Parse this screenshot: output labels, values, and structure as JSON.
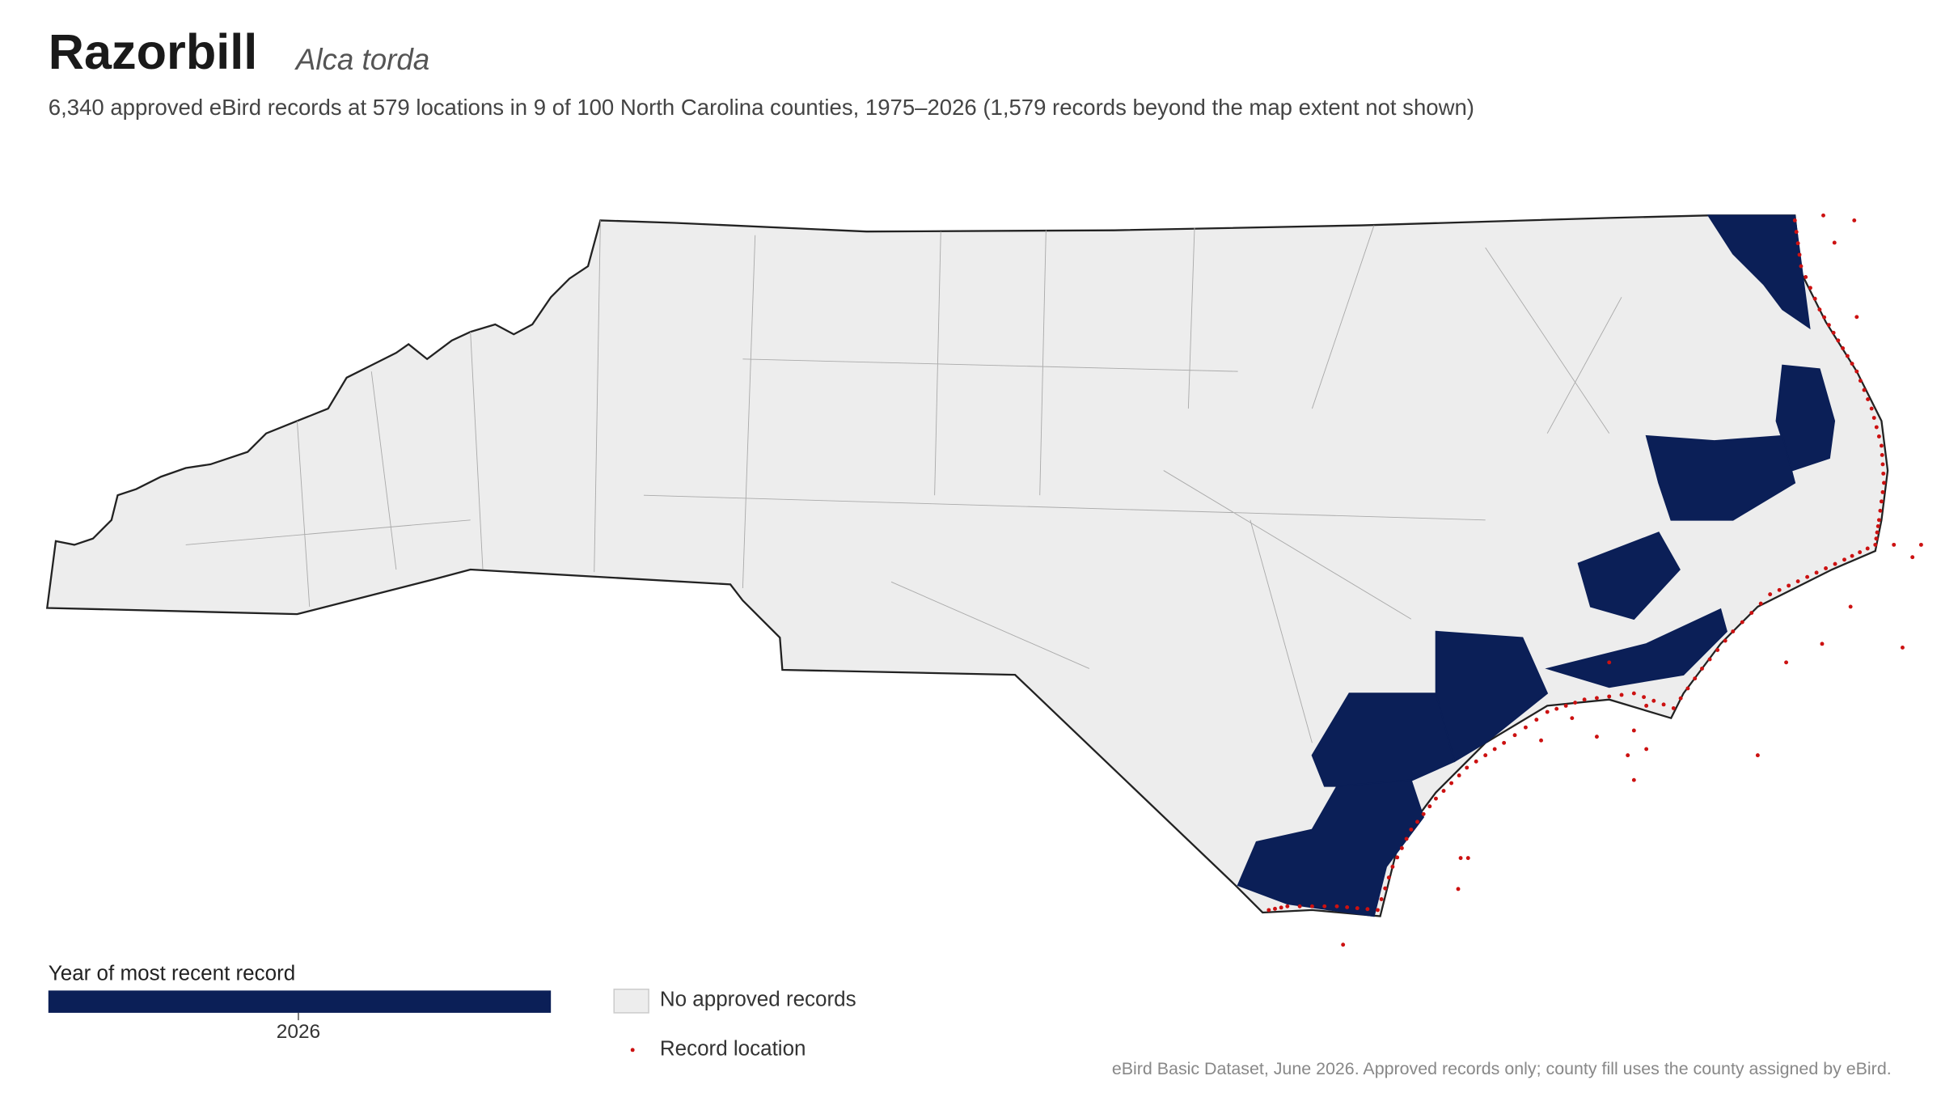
{
  "header": {
    "title": "Razorbill",
    "scientific_name": "Alca torda",
    "subtitle": "6,340 approved eBird records at 579 locations in 9 of 100 North Carolina counties, 1975–2026 (1,579 records beyond the map extent not shown)"
  },
  "legend": {
    "colorbar_title": "Year of most recent record",
    "colorbar_tick": "2026",
    "items": [
      "No approved records",
      "Record location"
    ]
  },
  "footer": "eBird Basic Dataset, June 2026. Approved records only; county fill uses the county assigned by eBird."
}
